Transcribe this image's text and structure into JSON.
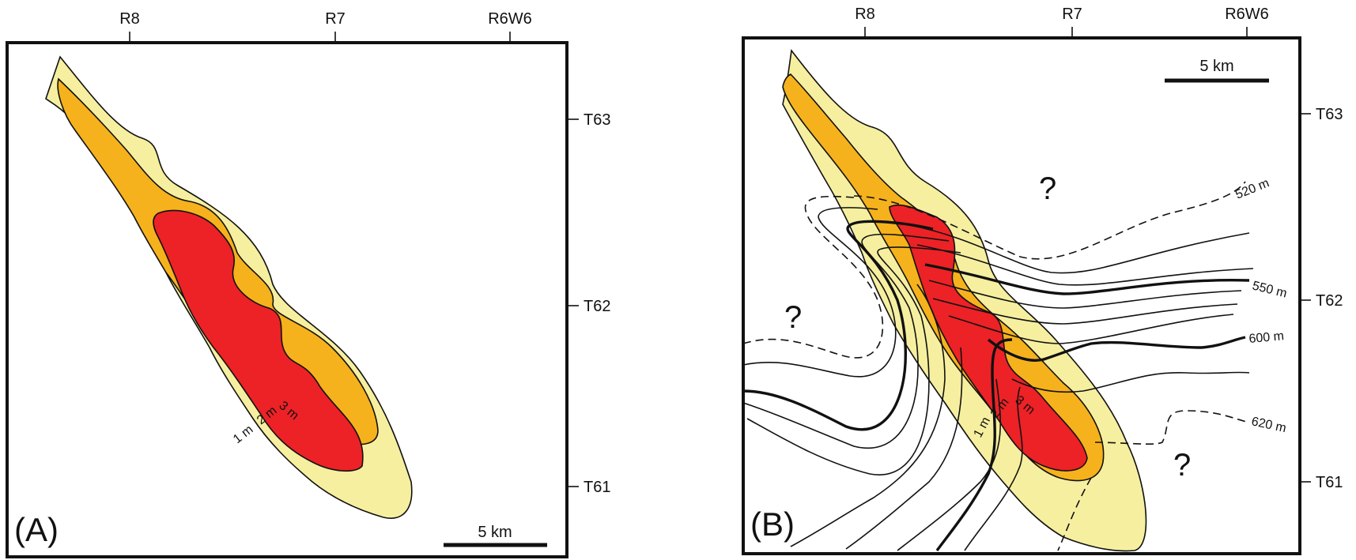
{
  "panel_a": {
    "label": "(A)",
    "range_labels": [
      "R8",
      "R7",
      "R6W6"
    ],
    "township_labels": [
      "T63",
      "T62",
      "T61"
    ],
    "isopach_labels": [
      "3 m",
      "2 m",
      "1 m"
    ],
    "scale_label": "5 km"
  },
  "panel_b": {
    "label": "(B)",
    "range_labels": [
      "R8",
      "R7",
      "R6W6"
    ],
    "township_labels": [
      "T63",
      "T62",
      "T61"
    ],
    "isopach_labels": [
      "3 m",
      "2 m",
      "1 m"
    ],
    "scale_label": "5 km",
    "elevation_labels": [
      "520 m",
      "550 m",
      "600 m",
      "620 m"
    ],
    "unknown_marks": [
      "?",
      "?",
      "?"
    ]
  },
  "colors": {
    "isopach_1m": "#f6efa0",
    "isopach_2m": "#f6b21c",
    "isopach_3m": "#ec2226",
    "line": "#111111"
  }
}
